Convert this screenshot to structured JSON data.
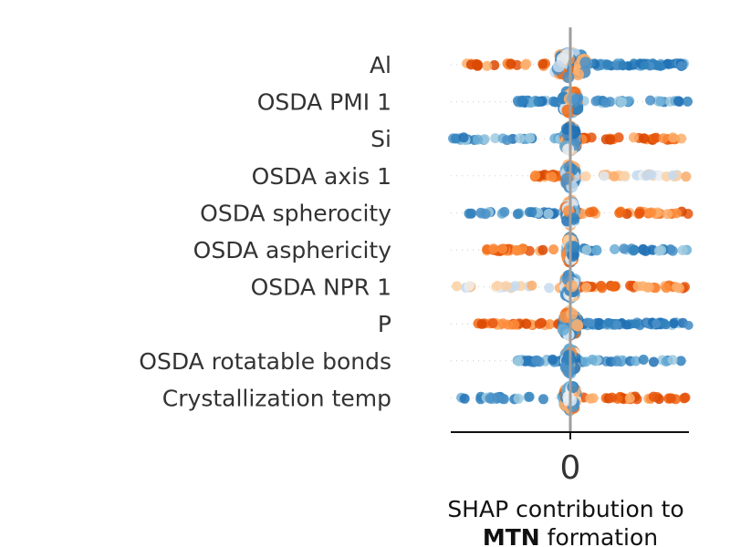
{
  "chart_data": {
    "type": "scatter",
    "subtype": "beeswarm",
    "title": "",
    "xlabel_line1": "SHAP contribution to",
    "xlabel_bold": "MTN",
    "xlabel_rest": " formation",
    "ylabel": "",
    "x_ticks": [
      "0"
    ],
    "zero_line": true,
    "grid": false,
    "legend": "none",
    "colors": {
      "low": "#2171b5",
      "mid": "#f0f0f0",
      "high": "#d94801"
    },
    "features": [
      {
        "name": "Al",
        "min": -1.0,
        "max": 1.0,
        "core": 0.28,
        "left_color": "high",
        "right_color": "low",
        "dense_right": true
      },
      {
        "name": "OSDA PMI 1",
        "min": -0.45,
        "max": 1.0,
        "core": 0.12,
        "left_color": "low",
        "right_color": "low",
        "dense_right": false
      },
      {
        "name": "Si",
        "min": -1.0,
        "max": 1.0,
        "core": 0.1,
        "left_color": "low",
        "right_color": "high",
        "dense_right": false
      },
      {
        "name": "OSDA axis 1",
        "min": -0.3,
        "max": 1.0,
        "core": 0.08,
        "left_color": "high",
        "right_color": "mid",
        "dense_right": false
      },
      {
        "name": "OSDA spherocity",
        "min": -0.85,
        "max": 1.0,
        "core": 0.08,
        "left_color": "low",
        "right_color": "high",
        "dense_right": false
      },
      {
        "name": "OSDA asphericity",
        "min": -0.7,
        "max": 1.0,
        "core": 0.06,
        "left_color": "high",
        "right_color": "low",
        "dense_right": false
      },
      {
        "name": "OSDA NPR 1",
        "min": -0.95,
        "max": 1.0,
        "core": 0.08,
        "left_color": "mid",
        "right_color": "high",
        "dense_right": false
      },
      {
        "name": "P",
        "min": -0.8,
        "max": 1.0,
        "core": 0.12,
        "left_color": "high",
        "right_color": "low",
        "dense_right": true
      },
      {
        "name": "OSDA rotatable bonds",
        "min": -0.45,
        "max": 0.95,
        "core": 0.08,
        "left_color": "low",
        "right_color": "low",
        "dense_right": false
      },
      {
        "name": "Crystallization temp",
        "min": -1.0,
        "max": 1.0,
        "core": 0.1,
        "left_color": "low",
        "right_color": "high",
        "dense_right": false
      }
    ]
  }
}
